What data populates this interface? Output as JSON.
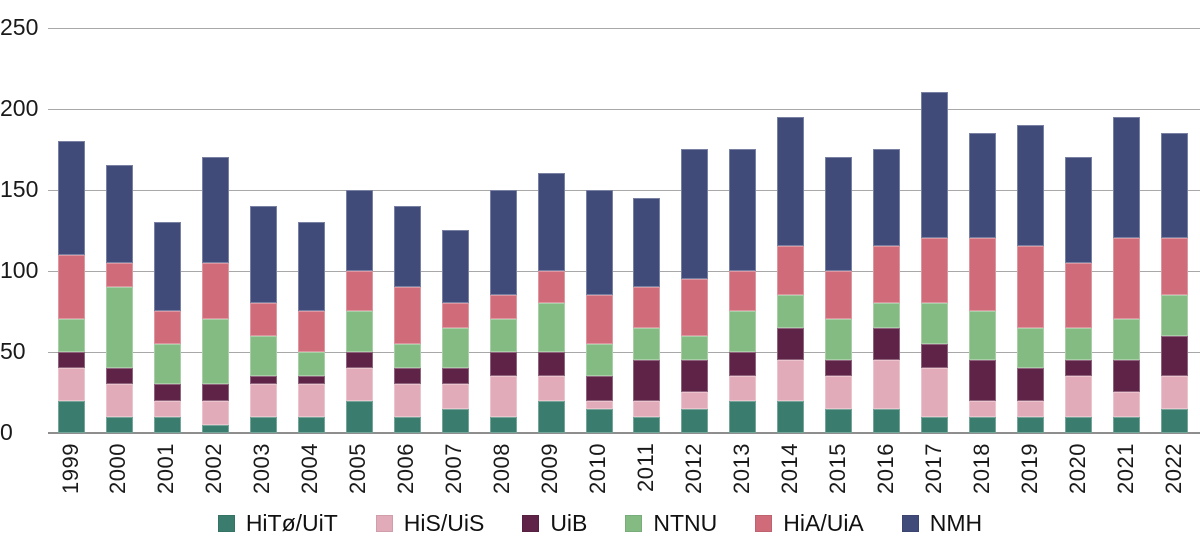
{
  "chart_data": {
    "type": "bar",
    "stacked": true,
    "title": "",
    "xlabel": "",
    "ylabel": "",
    "categories": [
      "1999",
      "2000",
      "2001",
      "2002",
      "2003",
      "2004",
      "2005",
      "2006",
      "2007",
      "2008",
      "2009",
      "2010",
      "2011",
      "2012",
      "2013",
      "2014",
      "2015",
      "2016",
      "2017",
      "2018",
      "2019",
      "2020",
      "2021",
      "2022"
    ],
    "series": [
      {
        "name": "HiTø/UiT",
        "color": "#3a7d6e",
        "values": [
          20,
          10,
          10,
          5,
          10,
          10,
          20,
          10,
          15,
          10,
          20,
          15,
          10,
          15,
          20,
          20,
          15,
          15,
          10,
          10,
          10,
          10,
          10,
          15
        ]
      },
      {
        "name": "HiS/UiS",
        "color": "#e2abb9",
        "values": [
          20,
          20,
          10,
          15,
          20,
          20,
          20,
          20,
          15,
          25,
          15,
          5,
          10,
          10,
          15,
          25,
          20,
          30,
          30,
          10,
          10,
          25,
          15,
          20
        ]
      },
      {
        "name": "UiB",
        "color": "#5e2346",
        "values": [
          10,
          10,
          10,
          10,
          5,
          5,
          10,
          10,
          10,
          15,
          15,
          15,
          25,
          20,
          15,
          20,
          10,
          20,
          15,
          25,
          20,
          10,
          20,
          25
        ]
      },
      {
        "name": "NTNU",
        "color": "#83bb83",
        "values": [
          20,
          50,
          25,
          40,
          25,
          15,
          25,
          15,
          25,
          20,
          30,
          20,
          20,
          15,
          25,
          20,
          25,
          15,
          25,
          30,
          25,
          20,
          25,
          25
        ]
      },
      {
        "name": "HiA/UiA",
        "color": "#d06b79",
        "values": [
          40,
          15,
          20,
          35,
          20,
          25,
          25,
          35,
          15,
          15,
          20,
          30,
          25,
          35,
          25,
          30,
          30,
          35,
          40,
          45,
          50,
          40,
          50,
          35
        ]
      },
      {
        "name": "NMH",
        "color": "#404b7a",
        "values": [
          70,
          60,
          55,
          65,
          60,
          55,
          50,
          50,
          45,
          65,
          60,
          65,
          55,
          80,
          75,
          80,
          70,
          60,
          90,
          65,
          75,
          65,
          75,
          65
        ]
      }
    ],
    "totals": [
      180,
      165,
      130,
      170,
      140,
      130,
      150,
      140,
      125,
      150,
      160,
      150,
      145,
      175,
      175,
      195,
      170,
      175,
      210,
      185,
      190,
      170,
      195,
      185
    ],
    "ylim": [
      0,
      250
    ],
    "yticks": [
      0,
      50,
      100,
      150,
      200,
      250
    ],
    "grid": "horizontal",
    "legend_position": "bottom",
    "legend": [
      "HiTø/UiT",
      "HiS/UiS",
      "UiB",
      "NTNU",
      "HiA/UiA",
      "NMH"
    ]
  },
  "colors": {
    "gridline": "#a8a8a8",
    "baseline": "#8e8e8e",
    "text": "#1a1a1a",
    "background": "#ffffff"
  }
}
